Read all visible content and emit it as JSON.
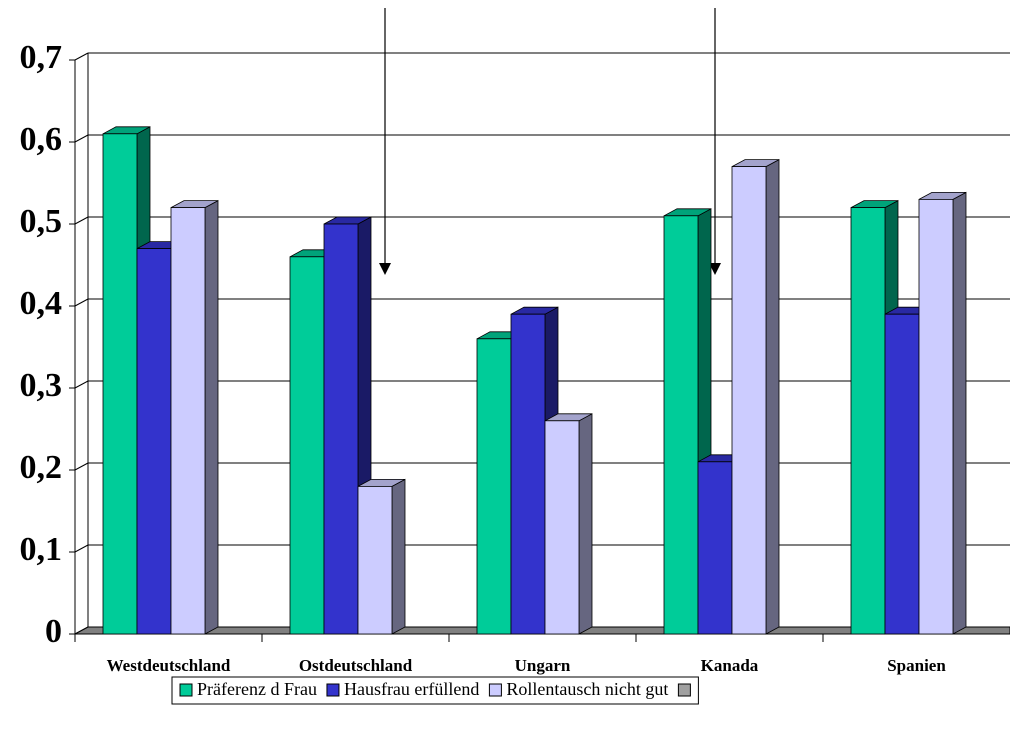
{
  "chart_data": {
    "type": "bar3d",
    "categories": [
      "Westdeutschland",
      "Ostdeutschland",
      "Ungarn",
      "Kanada",
      "Spanien"
    ],
    "series": [
      {
        "name": "Präferenz d Frau",
        "color": "#00cc99",
        "values": [
          0.61,
          0.46,
          0.36,
          0.51,
          0.52
        ]
      },
      {
        "name": "Hausfrau erfüllend",
        "color": "#3333cc",
        "values": [
          0.47,
          0.5,
          0.39,
          0.21,
          0.39
        ]
      },
      {
        "name": "Rollentausch nicht gut",
        "color": "#ccccff",
        "values": [
          0.52,
          0.18,
          0.26,
          0.57,
          0.53
        ]
      }
    ],
    "ylim": [
      0,
      0.7
    ],
    "yticks": [
      0,
      {
        "value": 0.1,
        "label": "0,1"
      },
      {
        "value": 0.2,
        "label": "0,2"
      },
      {
        "value": 0.3,
        "label": "0,3"
      },
      {
        "value": 0.4,
        "label": "0,4"
      },
      {
        "value": 0.5,
        "label": "0,5"
      },
      {
        "value": 0.6,
        "label": "0,6"
      },
      {
        "value": 0.7,
        "label": "0,7"
      }
    ],
    "grid": true
  }
}
